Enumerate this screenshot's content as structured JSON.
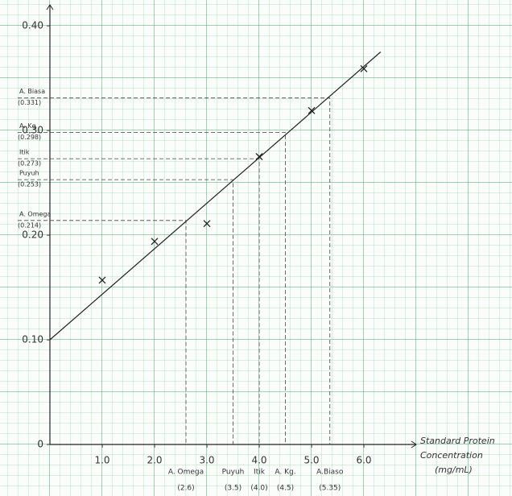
{
  "chart_data": {
    "type": "scatter",
    "x_label": [
      "Standard Protein",
      "Concentration",
      "(mg/mL)"
    ],
    "xlim": [
      0,
      7
    ],
    "ylim": [
      0,
      0.42
    ],
    "xticks": [
      {
        "value": 1,
        "label": "1.0"
      },
      {
        "value": 2,
        "label": "2.0"
      },
      {
        "value": 3,
        "label": "3.0"
      },
      {
        "value": 4,
        "label": "4.0"
      },
      {
        "value": 5,
        "label": "5.0"
      },
      {
        "value": 6,
        "label": "6.0"
      }
    ],
    "yticks": [
      0,
      {
        "value": 0.1,
        "label": "0.10"
      },
      {
        "value": 0.2,
        "label": "0.20"
      },
      {
        "value": 0.3,
        "label": "0.30"
      },
      {
        "value": 0.4,
        "label": "0.40"
      }
    ],
    "points": {
      "color": "#222222",
      "x": [
        1,
        2,
        3,
        4,
        5,
        6
      ],
      "y": [
        0.157,
        0.194,
        0.211,
        0.275,
        0.319,
        0.359
      ]
    },
    "fit_line": {
      "color": "#222222",
      "x": [
        0,
        6.32
      ],
      "y": [
        0.1,
        0.375
      ]
    },
    "samples": [
      {
        "label_y": "A. Biasa",
        "y": 0.331,
        "y_label": "(0.331)",
        "label_x": "A.Biaso",
        "x": 5.35,
        "x_label": "(5.35)"
      },
      {
        "label_y": "A. Kg",
        "y": 0.298,
        "y_label": "(0.298)",
        "label_x": "A. Kg.",
        "x": 4.5,
        "x_label": "(4.5)"
      },
      {
        "label_y": "Itik",
        "y": 0.273,
        "y_label": "(0.273)",
        "label_x": "Itik",
        "x": 4.0,
        "x_label": "(4.0)"
      },
      {
        "label_y": "Puyuh",
        "y": 0.253,
        "y_label": "(0.253)",
        "label_x": "Puyuh",
        "x": 3.5,
        "x_label": "(3.5)"
      },
      {
        "label_y": "A. Omega",
        "y": 0.214,
        "y_label": "(0.214)",
        "label_x": "A. Omega",
        "x": 2.6,
        "x_label": "(2.6)"
      }
    ]
  }
}
